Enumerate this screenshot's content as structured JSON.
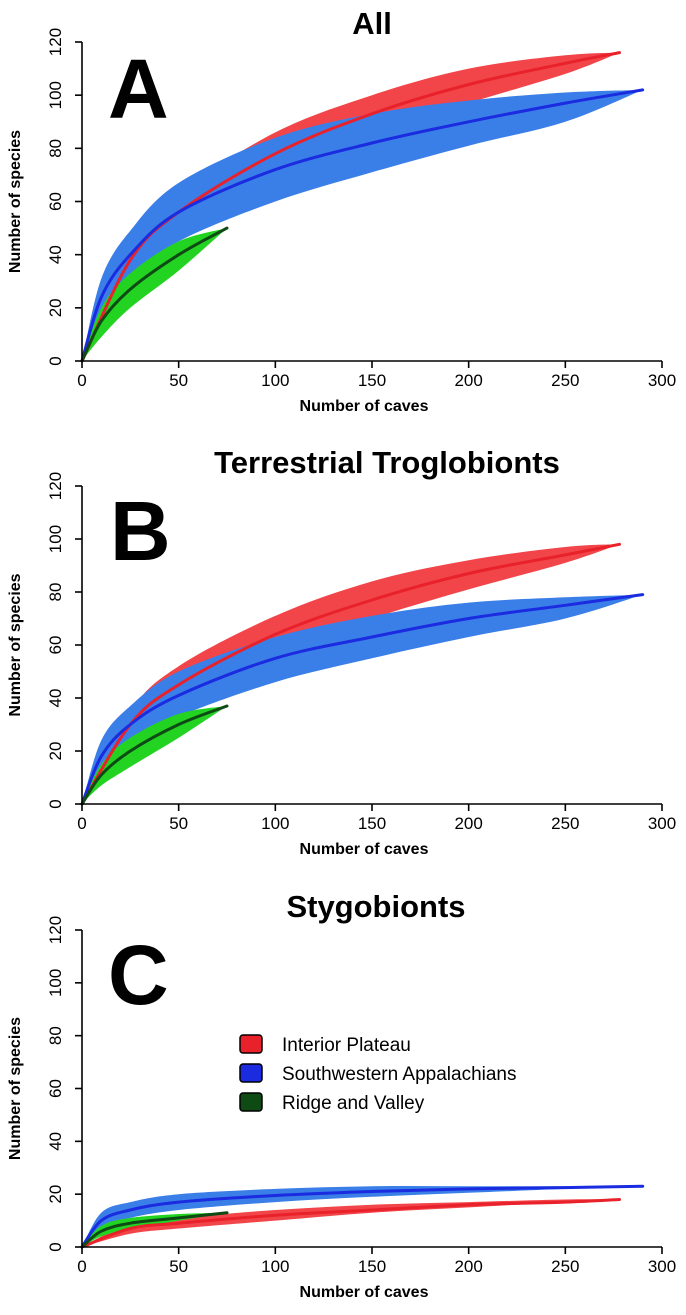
{
  "chart_data": [
    {
      "type": "line",
      "panel_letter": "A",
      "title": "All",
      "xlabel": "Number of caves",
      "ylabel": "Number of species",
      "xlim": [
        0,
        300
      ],
      "ylim": [
        0,
        120
      ],
      "xticks": [
        0,
        50,
        100,
        150,
        200,
        250,
        300
      ],
      "yticks": [
        0,
        20,
        40,
        60,
        80,
        100,
        120
      ],
      "series": [
        {
          "name": "Interior Plateau",
          "color": "#e8212a",
          "band_color": "#f2454a",
          "x": [
            0,
            25,
            50,
            100,
            150,
            200,
            250,
            278
          ],
          "y": [
            0,
            38,
            56,
            78,
            93,
            104,
            112,
            116
          ],
          "lower": [
            0,
            33,
            49,
            70,
            85,
            97,
            108,
            116
          ],
          "upper": [
            0,
            44,
            63,
            86,
            100,
            110,
            115,
            116
          ]
        },
        {
          "name": "Southwestern Appalachians",
          "color": "#1a2be0",
          "band_color": "#3a7ee8",
          "x": [
            0,
            10,
            25,
            50,
            100,
            150,
            200,
            250,
            290
          ],
          "y": [
            0,
            24,
            40,
            56,
            72,
            82,
            90,
            97,
            102
          ],
          "lower": [
            0,
            17,
            31,
            45,
            60,
            71,
            81,
            90,
            102
          ],
          "upper": [
            0,
            31,
            49,
            67,
            84,
            93,
            98,
            101,
            102
          ]
        },
        {
          "name": "Ridge and Valley",
          "color": "#0e4a14",
          "band_color": "#22d322",
          "x": [
            0,
            10,
            25,
            50,
            75
          ],
          "y": [
            0,
            15,
            27,
            40,
            50
          ],
          "lower": [
            0,
            9,
            20,
            34,
            50
          ],
          "upper": [
            0,
            20,
            33,
            45,
            50
          ]
        }
      ]
    },
    {
      "type": "line",
      "panel_letter": "B",
      "title": "Terrestrial Troglobionts",
      "xlabel": "Number of caves",
      "ylabel": "Number of species",
      "xlim": [
        0,
        300
      ],
      "ylim": [
        0,
        120
      ],
      "xticks": [
        0,
        50,
        100,
        150,
        200,
        250,
        300
      ],
      "yticks": [
        0,
        20,
        40,
        60,
        80,
        100,
        120
      ],
      "series": [
        {
          "name": "Interior Plateau",
          "color": "#e8212a",
          "band_color": "#f2454a",
          "x": [
            0,
            25,
            50,
            100,
            150,
            200,
            250,
            278
          ],
          "y": [
            0,
            30,
            45,
            64,
            77,
            87,
            94,
            98
          ],
          "lower": [
            0,
            26,
            39,
            57,
            70,
            81,
            91,
            98
          ],
          "upper": [
            0,
            35,
            52,
            71,
            84,
            92,
            97,
            98
          ]
        },
        {
          "name": "Southwestern Appalachians",
          "color": "#1a2be0",
          "band_color": "#3a7ee8",
          "x": [
            0,
            10,
            25,
            50,
            100,
            150,
            200,
            250,
            290
          ],
          "y": [
            0,
            18,
            30,
            41,
            55,
            63,
            70,
            75,
            79
          ],
          "lower": [
            0,
            13,
            23,
            33,
            46,
            55,
            63,
            70,
            79
          ],
          "upper": [
            0,
            24,
            37,
            50,
            63,
            71,
            76,
            78,
            79
          ]
        },
        {
          "name": "Ridge and Valley",
          "color": "#0e4a14",
          "band_color": "#22d322",
          "x": [
            0,
            10,
            25,
            50,
            75
          ],
          "y": [
            0,
            11,
            20,
            30,
            37
          ],
          "lower": [
            0,
            7,
            14,
            25,
            37
          ],
          "upper": [
            0,
            15,
            25,
            34,
            37
          ]
        }
      ]
    },
    {
      "type": "line",
      "panel_letter": "C",
      "title": "Stygobionts",
      "xlabel": "Number of caves",
      "ylabel": "Number of species",
      "xlim": [
        0,
        300
      ],
      "ylim": [
        0,
        120
      ],
      "xticks": [
        0,
        50,
        100,
        150,
        200,
        250,
        300
      ],
      "yticks": [
        0,
        20,
        40,
        60,
        80,
        100,
        120
      ],
      "legend": {
        "placement": "center-left",
        "entries": [
          {
            "label": "Interior Plateau",
            "color": "#e8212a"
          },
          {
            "label": "Southwestern Appalachians",
            "color": "#1a2be0"
          },
          {
            "label": "Ridge and Valley",
            "color": "#0e4a14"
          }
        ]
      },
      "series": [
        {
          "name": "Interior Plateau",
          "color": "#e8212a",
          "band_color": "#f2454a",
          "x": [
            0,
            25,
            50,
            100,
            150,
            200,
            250,
            278
          ],
          "y": [
            0,
            7,
            9,
            12,
            14,
            16,
            17,
            18
          ],
          "lower": [
            0,
            5,
            7,
            10,
            13,
            15,
            17,
            18
          ],
          "upper": [
            0,
            9,
            11,
            14,
            16,
            17,
            18,
            18
          ]
        },
        {
          "name": "Southwestern Appalachians",
          "color": "#1a2be0",
          "band_color": "#3a7ee8",
          "x": [
            0,
            10,
            25,
            50,
            100,
            150,
            200,
            250,
            290
          ],
          "y": [
            0,
            10,
            14,
            17,
            19.5,
            21,
            22,
            22.5,
            23
          ],
          "lower": [
            0,
            7,
            11,
            14,
            17,
            19,
            20.5,
            22,
            23
          ],
          "upper": [
            0,
            13,
            17,
            20,
            22,
            23,
            23,
            23,
            23
          ]
        },
        {
          "name": "Ridge and Valley",
          "color": "#0e4a14",
          "band_color": "#22d322",
          "x": [
            0,
            10,
            25,
            50,
            75
          ],
          "y": [
            0,
            6,
            9,
            11,
            13
          ],
          "lower": [
            0,
            4,
            7,
            10,
            13
          ],
          "upper": [
            0,
            8,
            11,
            12.5,
            13
          ]
        }
      ]
    }
  ]
}
